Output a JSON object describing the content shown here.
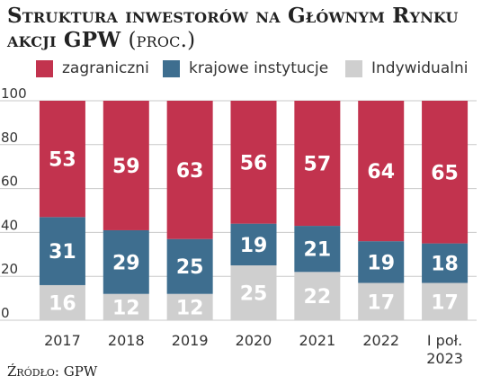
{
  "title_main": "Struktura inwestorów na Głównym Rynku akcji GPW",
  "title_unit": "(proc.)",
  "source": "Źródło: GPW",
  "colors": {
    "foreign": "#c2334e",
    "domestic": "#3e6e8f",
    "individual": "#cfcfcf",
    "text_dark": "#333333",
    "grid": "#c8c8c8"
  },
  "chart_data": {
    "type": "bar",
    "stacked": true,
    "categories": [
      "2017",
      "2018",
      "2019",
      "2020",
      "2021",
      "2022",
      "I poł.\n2023"
    ],
    "series": [
      {
        "name": "zagraniczni",
        "values": [
          53,
          59,
          63,
          56,
          57,
          64,
          65
        ]
      },
      {
        "name": "krajowe instytucje",
        "values": [
          31,
          29,
          25,
          19,
          21,
          19,
          18
        ]
      },
      {
        "name": "Indywidualni",
        "values": [
          16,
          12,
          12,
          25,
          22,
          17,
          17
        ]
      }
    ],
    "yticks": [
      0,
      20,
      40,
      60,
      80,
      100
    ],
    "ylim": [
      0,
      100
    ],
    "grid": true,
    "legend_position": "top"
  }
}
